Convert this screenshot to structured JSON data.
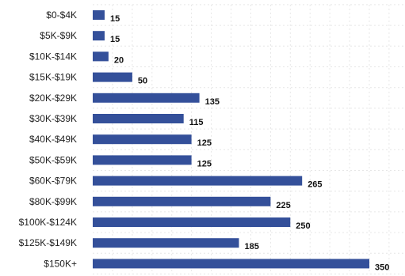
{
  "chart_data": {
    "type": "bar",
    "orientation": "horizontal",
    "categories": [
      "$0-$4K",
      "$5K-$9K",
      "$10K-$14K",
      "$15K-$19K",
      "$20K-$29K",
      "$30K-$39K",
      "$40K-$49K",
      "$50K-$59K",
      "$60K-$79K",
      "$80K-$99K",
      "$100K-$124K",
      "$125K-$149K",
      "$150K+"
    ],
    "values": [
      15,
      15,
      20,
      50,
      135,
      115,
      125,
      125,
      265,
      225,
      250,
      185,
      350
    ],
    "xlim": [
      0,
      400
    ],
    "grid": true,
    "bar_color": "#34509a",
    "data_labels": true,
    "title": "",
    "xlabel": "",
    "ylabel": ""
  }
}
